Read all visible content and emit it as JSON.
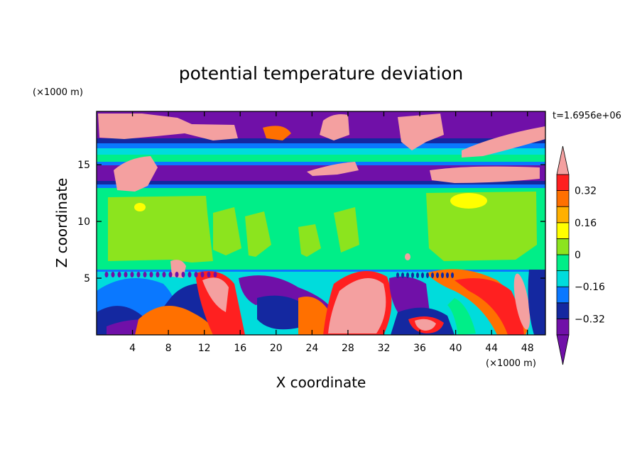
{
  "chart_data": {
    "type": "heatmap",
    "title": "potential temperature deviation",
    "xlabel": "X coordinate",
    "ylabel": "Z coordinate",
    "x_unit": "(×1000 m)",
    "y_unit": "(×1000 m)",
    "time_label": "t=1.6956e+06",
    "xlim": [
      0,
      50
    ],
    "ylim": [
      0,
      19.7
    ],
    "x_ticks": [
      4,
      8,
      12,
      16,
      20,
      24,
      28,
      32,
      36,
      40,
      44,
      48
    ],
    "y_ticks": [
      5,
      10,
      15
    ],
    "colorbar": {
      "levels": [
        -0.4,
        -0.32,
        -0.24,
        -0.16,
        -0.08,
        0,
        0.08,
        0.16,
        0.24,
        0.32,
        0.4
      ],
      "tick_labels": [
        "0.32",
        "0.16",
        "0",
        "−0.16",
        "−0.32"
      ],
      "tick_values": [
        0.32,
        0.16,
        0,
        -0.16,
        -0.32
      ],
      "colors": [
        "#7010a8",
        "#1428a0",
        "#0a78ff",
        "#00dcdc",
        "#00ee88",
        "#8ce41e",
        "#ffff00",
        "#ffb000",
        "#ff7000",
        "#ff2020",
        "#f4a0a0"
      ]
    },
    "grid": false
  }
}
